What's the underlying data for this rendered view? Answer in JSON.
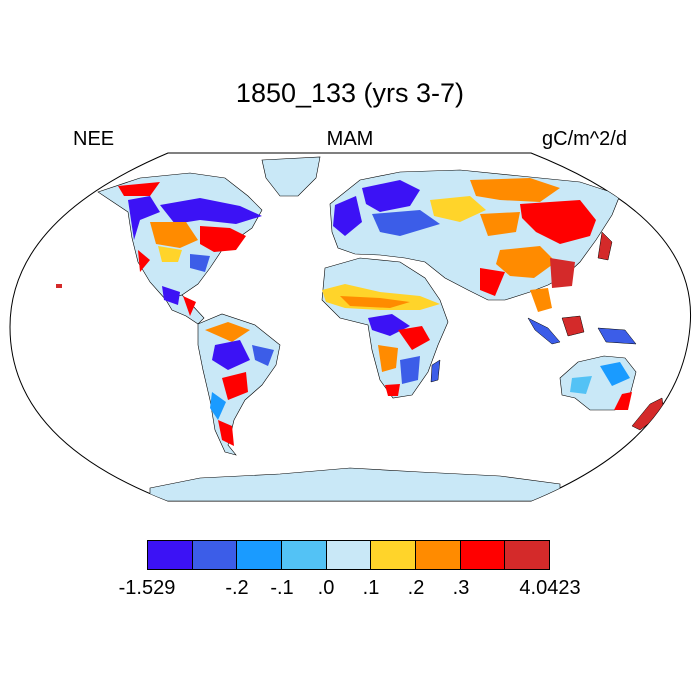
{
  "title": "1850_133 (yrs 3-7)",
  "left_label": "NEE",
  "center_label": "MAM",
  "right_label": "gC/m^2/d",
  "colorbar": {
    "colors": [
      "#3c12f5",
      "#3c5de8",
      "#1a9bff",
      "#53c2f5",
      "#c9e8f7",
      "#ffd42a",
      "#ff8b00",
      "#ff0000",
      "#d42a2a"
    ],
    "tick_labels": [
      "-1.529",
      "-.2",
      "-.1",
      ".0",
      ".1",
      ".2",
      ".3",
      "4.0423"
    ]
  },
  "map": {
    "projection": "robinson",
    "variable": "NEE",
    "season": "MAM",
    "units": "gC/m^2/d",
    "ocean_color": "#ffffff",
    "land_base_color": "#c9e8f7"
  }
}
